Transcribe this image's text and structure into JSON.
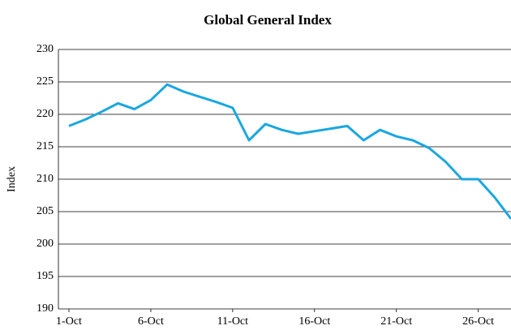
{
  "chart_data": {
    "type": "line",
    "title": "Global General Index",
    "y_label": "Index",
    "categories": [
      "1-Oct",
      null,
      null,
      null,
      null,
      "6-Oct",
      null,
      null,
      null,
      null,
      "11-Oct",
      null,
      null,
      null,
      null,
      "16-Oct",
      null,
      null,
      null,
      null,
      "21-Oct",
      null,
      null,
      null,
      null,
      "26-Oct",
      null,
      null
    ],
    "series": [
      {
        "name": "Global General Index",
        "color": "#1aa7e0",
        "values": [
          218.2,
          219.2,
          220.4,
          221.7,
          220.8,
          222.2,
          224.6,
          223.5,
          222.7,
          221.9,
          221.0,
          216.0,
          218.5,
          217.6,
          217.0,
          217.4,
          217.8,
          218.2,
          216.0,
          217.6,
          216.6,
          216.0,
          214.8,
          212.7,
          210.0,
          210.0,
          207.2,
          203.9
        ]
      }
    ],
    "ylim": [
      190,
      230
    ],
    "yticks": [
      190,
      195,
      200,
      205,
      210,
      215,
      220,
      225,
      230
    ],
    "grid": true
  }
}
